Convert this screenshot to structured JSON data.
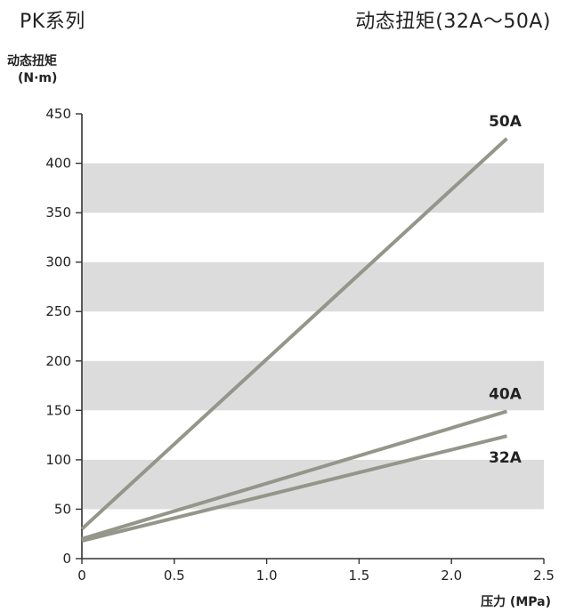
{
  "header": {
    "series_title": "PK系列",
    "chart_title": "动态扭矩(32A～50A)"
  },
  "chart_data": {
    "type": "line",
    "ylabel": "动态扭矩",
    "yunit": "(N·m)",
    "xlabel": "压力 (MPa)",
    "xlim": [
      0,
      2.5
    ],
    "ylim": [
      0,
      450
    ],
    "xticks": [
      "0",
      "0.5",
      "1.0",
      "1.5",
      "2.0",
      "2.5"
    ],
    "xtick_values": [
      0,
      0.5,
      1.0,
      1.5,
      2.0,
      2.5
    ],
    "yticks": [
      0,
      50,
      100,
      150,
      200,
      250,
      300,
      350,
      400,
      450
    ],
    "bands": [
      [
        50,
        100
      ],
      [
        150,
        200
      ],
      [
        250,
        300
      ],
      [
        350,
        400
      ]
    ],
    "band_color": "#dcdcdc",
    "line_color": "#93968a",
    "series": [
      {
        "name": "50A",
        "x": [
          0,
          2.3
        ],
        "y": [
          30,
          425
        ]
      },
      {
        "name": "40A",
        "x": [
          0,
          2.3
        ],
        "y": [
          20,
          149
        ]
      },
      {
        "name": "32A",
        "x": [
          0,
          2.3
        ],
        "y": [
          18,
          124
        ]
      }
    ]
  }
}
